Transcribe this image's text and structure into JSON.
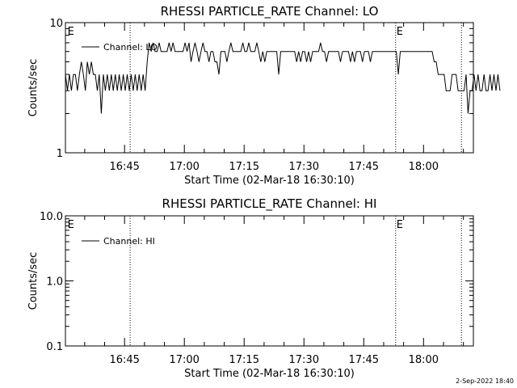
{
  "footer_timestamp": "2-Sep-2022 18:40",
  "chart_data": [
    {
      "type": "line",
      "title": "RHESSI PARTICLE_RATE Channel: LO",
      "xlabel": "Start Time (02-Mar-18 16:30:10)",
      "ylabel": "Counts/sec",
      "y_scale": "log",
      "ylim": [
        1,
        10
      ],
      "y_ticks": [
        "1",
        "10"
      ],
      "x_ticks": [
        "16:45",
        "17:00",
        "17:15",
        "17:30",
        "17:45",
        "18:00"
      ],
      "x_tick_minutes": [
        45,
        60,
        75,
        90,
        105,
        120
      ],
      "xlim_minutes": [
        30.17,
        132.5
      ],
      "event_lines_minutes": [
        46.4,
        113.0,
        129.5
      ],
      "event_markers": [
        {
          "label": "E",
          "x_minute": 30.5
        },
        {
          "label": "E",
          "x_minute": 113.0
        }
      ],
      "legend": "Channel: LO",
      "grid": false,
      "series": [
        {
          "name": "Channel: LO",
          "x_start_minute": 30.17,
          "x_step_minutes": 0.5,
          "values": [
            4,
            3,
            4,
            3,
            4,
            4,
            3,
            4,
            5,
            4,
            3,
            5,
            4,
            5,
            4,
            4,
            3,
            4,
            2,
            4,
            3,
            4,
            3,
            4,
            3,
            4,
            3,
            4,
            3,
            4,
            3,
            4,
            3,
            4,
            3,
            4,
            3,
            4,
            3,
            4,
            3,
            5,
            7,
            6,
            7,
            6,
            6,
            7,
            6,
            6,
            6,
            6,
            7,
            6,
            7,
            6,
            6,
            6,
            6,
            6,
            7,
            6,
            7,
            5,
            6,
            7,
            6,
            5,
            6,
            7,
            6,
            6,
            5,
            6,
            6,
            5,
            5,
            4,
            6,
            6,
            6,
            5,
            6,
            7,
            6,
            6,
            6,
            6,
            6,
            7,
            6,
            6,
            7,
            6,
            6,
            6,
            7,
            6,
            5,
            6,
            5,
            6,
            6,
            6,
            6,
            6,
            6,
            4,
            6,
            6,
            6,
            6,
            6,
            6,
            6,
            6,
            5,
            6,
            5,
            6,
            6,
            5,
            6,
            5,
            6,
            6,
            6,
            6,
            7,
            6,
            6,
            5,
            6,
            6,
            6,
            6,
            6,
            6,
            5,
            6,
            6,
            6,
            6,
            5,
            6,
            5,
            6,
            6,
            6,
            5,
            6,
            6,
            6,
            5,
            6,
            6,
            6,
            6,
            6,
            6,
            6,
            6,
            6,
            6,
            6,
            6,
            6,
            4,
            6,
            6,
            6,
            6,
            6,
            6,
            6,
            6,
            6,
            6,
            6,
            6,
            6,
            6,
            6,
            6,
            6,
            5,
            5,
            4,
            4,
            4,
            4,
            3,
            3,
            3,
            4,
            4,
            4,
            3,
            3,
            3,
            3,
            4,
            2,
            3,
            3,
            4,
            3,
            4,
            3,
            3,
            4,
            3,
            3,
            4,
            3,
            4,
            3,
            4,
            3
          ]
        }
      ]
    },
    {
      "type": "line",
      "title": "RHESSI PARTICLE_RATE Channel: HI",
      "xlabel": "Start Time (02-Mar-18 16:30:10)",
      "ylabel": "Counts/sec",
      "y_scale": "log",
      "ylim": [
        0.1,
        10
      ],
      "y_ticks": [
        "0.1",
        "1.0",
        "10.0"
      ],
      "x_ticks": [
        "16:45",
        "17:00",
        "17:15",
        "17:30",
        "17:45",
        "18:00"
      ],
      "x_tick_minutes": [
        45,
        60,
        75,
        90,
        105,
        120
      ],
      "xlim_minutes": [
        30.17,
        132.5
      ],
      "event_lines_minutes": [
        46.4,
        113.0,
        129.5
      ],
      "event_markers": [
        {
          "label": "E",
          "x_minute": 30.5
        },
        {
          "label": "E",
          "x_minute": 113.0
        }
      ],
      "legend": "Channel: HI",
      "grid": false,
      "series": [
        {
          "name": "Channel: HI",
          "x_start_minute": 30.17,
          "x_step_minutes": 0.5,
          "values": []
        }
      ]
    }
  ]
}
